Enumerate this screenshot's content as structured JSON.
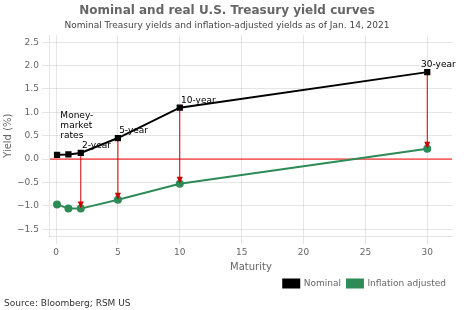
{
  "chart_data": {
    "type": "line",
    "title": "Nominal and real U.S. Treasury yield curves",
    "subtitle": "Nominal Treasury yields and inflation-adjusted yields as of Jan. 14, 2021",
    "xlabel": "Maturity",
    "ylabel": "Yield (%)",
    "source": "Source: Bloomberg; RSM US",
    "x": [
      0.08,
      1,
      2,
      5,
      10,
      30
    ],
    "series": [
      {
        "name": "Nominal",
        "color": "#000000",
        "marker": "square",
        "values": [
          0.09,
          0.1,
          0.13,
          0.45,
          1.1,
          1.86
        ]
      },
      {
        "name": "Inflation adjusted",
        "color": "#2e8b57",
        "marker": "circle",
        "values": [
          -0.97,
          -1.06,
          -1.06,
          -0.87,
          -0.53,
          0.22
        ]
      }
    ],
    "xlim": [
      -0.5,
      32
    ],
    "xticks": [
      0,
      5,
      10,
      15,
      20,
      25,
      30
    ],
    "ylim": [
      -1.65,
      2.65
    ],
    "yticks": [
      {
        "value": -1.5,
        "label": "−1.5"
      },
      {
        "value": -1.0,
        "label": "−1.0"
      },
      {
        "value": -0.5,
        "label": "−0.5"
      },
      {
        "value": 0.0,
        "label": "0.0"
      },
      {
        "value": 0.5,
        "label": "0.5"
      },
      {
        "value": 1.0,
        "label": "1.0"
      },
      {
        "value": 1.5,
        "label": "1.5"
      },
      {
        "value": 2.0,
        "label": "2.0"
      },
      {
        "value": 2.5,
        "label": "2.5"
      }
    ],
    "grid": true,
    "legend": "lower right",
    "hlines": [
      {
        "y": 0,
        "color": "#ff0000"
      }
    ],
    "arrows": [
      {
        "x": 2,
        "from": 0.13,
        "to": -1.06,
        "color": "#cc0000"
      },
      {
        "x": 5,
        "from": 0.45,
        "to": -0.87,
        "color": "#cc0000"
      },
      {
        "x": 10,
        "from": 1.1,
        "to": -0.53,
        "color": "#cc0000"
      },
      {
        "x": 30,
        "from": 1.86,
        "to": 0.22,
        "color": "#cc0000"
      }
    ],
    "annotations": [
      {
        "text": "Money-\nmarket\nrates",
        "x": 0.35,
        "y": 1.02
      },
      {
        "text": "2-year",
        "x": 2.1,
        "y": 0.19
      },
      {
        "text": "5-year",
        "x": 5.1,
        "y": 0.51
      },
      {
        "text": "10-year",
        "x": 10.1,
        "y": 1.16
      },
      {
        "text": "30-year",
        "x": 29.5,
        "y": 1.92
      }
    ]
  }
}
